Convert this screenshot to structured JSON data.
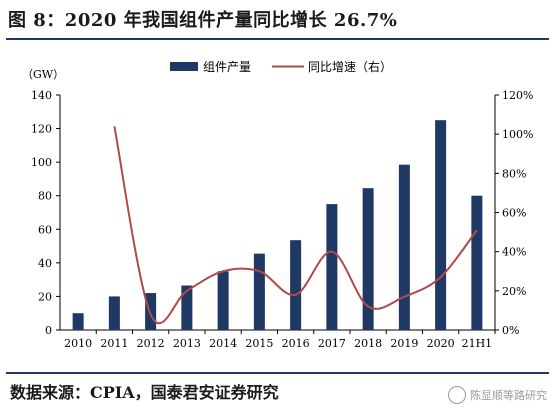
{
  "header": {
    "title": "图 8：2020 年我国组件产量同比增长 26.7%"
  },
  "footer": {
    "source": "数据来源：CPIA，国泰君安证券研究",
    "watermark": "陈显顺等路研究"
  },
  "colors": {
    "bar": "#1f3864",
    "line": "#b04a4a",
    "rule": "#1f3864"
  },
  "chart_data": {
    "type": "bar",
    "categories": [
      "2010",
      "2011",
      "2012",
      "2013",
      "2014",
      "2015",
      "2016",
      "2017",
      "2018",
      "2019",
      "2020",
      "21H1"
    ],
    "ylabel": "（GW）",
    "ylim": [
      0,
      140
    ],
    "yticks": [
      0,
      20,
      40,
      60,
      80,
      100,
      120,
      140
    ],
    "y2lim": [
      0,
      120
    ],
    "y2ticks": [
      "0%",
      "20%",
      "40%",
      "60%",
      "80%",
      "100%",
      "120%"
    ],
    "y2tick_values": [
      0,
      20,
      40,
      60,
      80,
      100,
      120
    ],
    "legend": {
      "bar_label": "组件产量",
      "line_label": "同比增速（右）",
      "placement": "top"
    },
    "series": [
      {
        "name": "组件产量",
        "kind": "bar",
        "values": [
          10,
          20,
          22,
          26.5,
          35,
          45.5,
          53.5,
          75,
          84.5,
          98.5,
          125,
          80
        ]
      },
      {
        "name": "同比增速（右）",
        "kind": "line",
        "axis": "right",
        "values": [
          null,
          104,
          8,
          20,
          30,
          30,
          18,
          40,
          12,
          17,
          27,
          51
        ]
      }
    ]
  }
}
